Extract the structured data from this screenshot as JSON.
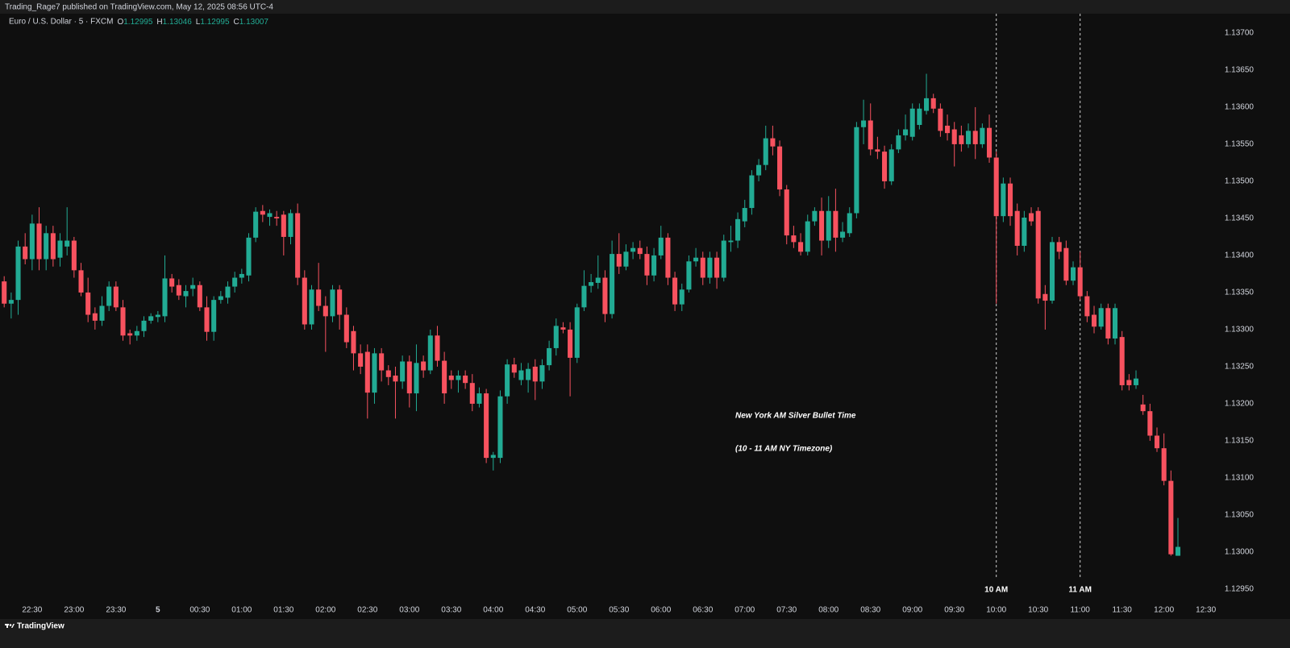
{
  "header": {
    "publisher": "Trading_Rage7 published on TradingView.com, May 12, 2025 08:56 UTC-4"
  },
  "footer": {
    "brand": "TradingView"
  },
  "chart_data": {
    "type": "candlestick",
    "symbol": "Euro / U.S. Dollar · 5 · FXCM",
    "ohlc_legend": [
      {
        "label": "O",
        "value": "1.12995"
      },
      {
        "label": "H",
        "value": "1.13046"
      },
      {
        "label": "L",
        "value": "1.12995"
      },
      {
        "label": "C",
        "value": "1.13007"
      }
    ],
    "up_color": "#22ab94",
    "down_color": "#f7525f",
    "x": [
      -110,
      -105,
      -100,
      -95,
      -90,
      -85,
      -80,
      -75,
      -70,
      -65,
      -60,
      -55,
      -50,
      -45,
      -40,
      -35,
      -30,
      -25,
      -20,
      -15,
      -10,
      -5,
      0,
      5,
      10,
      15,
      20,
      25,
      30,
      35,
      40,
      45,
      50,
      55,
      60,
      65,
      70,
      75,
      80,
      85,
      90,
      95,
      100,
      105,
      110,
      115,
      120,
      125,
      130,
      135,
      140,
      145,
      150,
      155,
      160,
      165,
      170,
      175,
      180,
      185,
      190,
      195,
      200,
      205,
      210,
      215,
      220,
      225,
      230,
      235,
      240,
      245,
      250,
      255,
      260,
      265,
      270,
      275,
      280,
      285,
      290,
      295,
      300,
      305,
      310,
      315,
      320,
      325,
      330,
      335,
      340,
      345,
      350,
      355,
      360,
      365,
      370,
      375,
      380,
      385,
      390,
      395,
      400,
      405,
      410,
      415,
      420,
      425,
      430,
      435,
      440,
      445,
      450,
      455,
      460,
      465,
      470,
      475,
      480,
      485,
      490,
      495,
      500,
      505,
      510,
      515,
      520,
      525,
      530,
      535,
      540,
      545,
      550,
      555,
      560,
      565,
      570,
      575,
      580,
      585,
      590,
      595,
      600,
      605,
      610,
      615,
      620,
      625,
      630,
      635,
      640,
      645,
      650,
      655,
      660,
      665,
      670,
      675,
      680,
      685,
      690,
      695,
      700,
      705,
      710,
      715,
      720,
      725,
      730
    ],
    "open": [
      1.13365,
      1.13335,
      1.1334,
      1.13412,
      1.13395,
      1.13443,
      1.13395,
      1.1343,
      1.13397,
      1.13412,
      1.1342,
      1.1338,
      1.1335,
      1.13322,
      1.13312,
      1.13332,
      1.13358,
      1.1333,
      1.13295,
      1.13292,
      1.13298,
      1.13312,
      1.13317,
      1.13318,
      1.13369,
      1.1336,
      1.13345,
      1.13355,
      1.1336,
      1.1333,
      1.13297,
      1.1334,
      1.13343,
      1.13358,
      1.1337,
      1.13373,
      1.13424,
      1.1346,
      1.13452,
      1.13452,
      1.13455,
      1.13425,
      1.13457,
      1.1337,
      1.13307,
      1.13354,
      1.13332,
      1.13318,
      1.13354,
      1.1332,
      1.13298,
      1.13268,
      1.1327,
      1.13215,
      1.13268,
      1.13245,
      1.13238,
      1.1323,
      1.13257,
      1.13214,
      1.13257,
      1.13245,
      1.13292,
      1.13258,
      1.13238,
      1.13232,
      1.13238,
      1.13228,
      1.132,
      1.13214,
      1.13127,
      1.13127,
      1.1321,
      1.13253,
      1.13232,
      1.13232,
      1.1325,
      1.1323,
      1.13252,
      1.13275,
      1.13303,
      1.133,
      1.13262,
      1.1333,
      1.13359,
      1.13363,
      1.1337,
      1.13321,
      1.13402,
      1.13385,
      1.13405,
      1.1341,
      1.13402,
      1.13373,
      1.134,
      1.13424,
      1.1337,
      1.13334,
      1.13354,
      1.13392,
      1.13397,
      1.1337,
      1.13397,
      1.1337,
      1.13418,
      1.1342,
      1.13446,
      1.13464,
      1.13508,
      1.13522,
      1.13558,
      1.13547,
      1.13489,
      1.13427,
      1.13418,
      1.13405,
      1.13446,
      1.1346,
      1.1342,
      1.1346,
      1.13424,
      1.1343,
      1.13457,
      1.13573,
      1.13582,
      1.13543,
      1.1354,
      1.135,
      1.13543,
      1.13562,
      1.1356,
      1.13576,
      1.13595,
      1.13612,
      1.13598,
      1.13575,
      1.1357,
      1.13562,
      1.1355,
      1.13568,
      1.1355,
      1.13572,
      1.13532,
      1.13453,
      1.13497,
      1.1346,
      1.13413,
      1.13457,
      1.1346,
      1.13348,
      1.13339,
      1.13418,
      1.1341,
      1.13366,
      1.13384,
      1.13345,
      1.1332,
      1.13304,
      1.13329,
      1.13288,
      1.1329,
      1.13232,
      1.13225,
      1.13199,
      1.1319,
      1.13157,
      1.1314,
      1.13096,
      1.12995
    ],
    "high": [
      1.13372,
      1.1335,
      1.1342,
      1.1343,
      1.13455,
      1.13465,
      1.1344,
      1.1344,
      1.1343,
      1.13465,
      1.13425,
      1.1339,
      1.1337,
      1.1333,
      1.13345,
      1.13365,
      1.13365,
      1.1334,
      1.133,
      1.13305,
      1.13318,
      1.13322,
      1.13325,
      1.134,
      1.13375,
      1.13368,
      1.1336,
      1.1337,
      1.13365,
      1.13345,
      1.13345,
      1.13352,
      1.13365,
      1.13378,
      1.13382,
      1.1343,
      1.13465,
      1.13468,
      1.13462,
      1.1346,
      1.1346,
      1.13462,
      1.1347,
      1.1338,
      1.1336,
      1.1339,
      1.13345,
      1.1336,
      1.1336,
      1.1333,
      1.13305,
      1.1328,
      1.1328,
      1.13275,
      1.13275,
      1.13252,
      1.1325,
      1.13265,
      1.13265,
      1.1328,
      1.13265,
      1.133,
      1.13305,
      1.1327,
      1.13245,
      1.13245,
      1.13245,
      1.1324,
      1.13222,
      1.1322,
      1.13135,
      1.13218,
      1.1326,
      1.13262,
      1.13255,
      1.13255,
      1.1326,
      1.1326,
      1.13285,
      1.13315,
      1.1331,
      1.1331,
      1.13335,
      1.1338,
      1.13375,
      1.134,
      1.1338,
      1.1342,
      1.1343,
      1.13415,
      1.13418,
      1.1342,
      1.13412,
      1.1341,
      1.1344,
      1.1343,
      1.13378,
      1.13362,
      1.134,
      1.1341,
      1.13405,
      1.13405,
      1.13405,
      1.13428,
      1.1344,
      1.13458,
      1.13475,
      1.13515,
      1.1353,
      1.13575,
      1.13575,
      1.13555,
      1.13495,
      1.1344,
      1.1343,
      1.13455,
      1.13465,
      1.13478,
      1.1348,
      1.1349,
      1.13445,
      1.13465,
      1.1358,
      1.1361,
      1.13605,
      1.1356,
      1.13548,
      1.1355,
      1.1357,
      1.1359,
      1.13605,
      1.13605,
      1.13645,
      1.13618,
      1.13605,
      1.1359,
      1.1358,
      1.13575,
      1.13578,
      1.136,
      1.13578,
      1.1359,
      1.1354,
      1.13505,
      1.13505,
      1.1347,
      1.1346,
      1.13465,
      1.13465,
      1.1336,
      1.13425,
      1.13425,
      1.1342,
      1.13392,
      1.13405,
      1.13352,
      1.13332,
      1.13335,
      1.13335,
      1.13335,
      1.13298,
      1.1324,
      1.13245,
      1.13212,
      1.132,
      1.13168,
      1.1316,
      1.1311,
      1.13046
    ],
    "low": [
      1.1333,
      1.13315,
      1.1332,
      1.13388,
      1.1338,
      1.1338,
      1.1338,
      1.13385,
      1.13385,
      1.134,
      1.1337,
      1.13345,
      1.1331,
      1.133,
      1.13305,
      1.13325,
      1.13325,
      1.13285,
      1.1328,
      1.13285,
      1.1329,
      1.13308,
      1.1331,
      1.1331,
      1.1335,
      1.1334,
      1.1333,
      1.13345,
      1.13325,
      1.13285,
      1.13285,
      1.13335,
      1.13335,
      1.1335,
      1.13362,
      1.13365,
      1.13418,
      1.13445,
      1.1344,
      1.1344,
      1.134,
      1.13415,
      1.1336,
      1.133,
      1.133,
      1.13325,
      1.1327,
      1.1331,
      1.133,
      1.13275,
      1.13245,
      1.1324,
      1.1318,
      1.132,
      1.1323,
      1.13225,
      1.1318,
      1.1322,
      1.13195,
      1.1319,
      1.13235,
      1.1324,
      1.1325,
      1.132,
      1.1322,
      1.13215,
      1.1322,
      1.1319,
      1.13195,
      1.1312,
      1.1311,
      1.1312,
      1.132,
      1.13235,
      1.13225,
      1.13215,
      1.13205,
      1.1322,
      1.13245,
      1.13265,
      1.13295,
      1.1321,
      1.13255,
      1.13325,
      1.1335,
      1.13355,
      1.1331,
      1.13315,
      1.13375,
      1.1338,
      1.13395,
      1.13395,
      1.1336,
      1.13365,
      1.13395,
      1.1336,
      1.13325,
      1.13325,
      1.1335,
      1.13385,
      1.1336,
      1.13362,
      1.13355,
      1.13365,
      1.13405,
      1.1341,
      1.13438,
      1.13455,
      1.135,
      1.13515,
      1.13535,
      1.1348,
      1.13415,
      1.1341,
      1.134,
      1.134,
      1.1344,
      1.134,
      1.1341,
      1.13405,
      1.13418,
      1.13425,
      1.1345,
      1.1355,
      1.13535,
      1.1353,
      1.1349,
      1.13495,
      1.13538,
      1.13555,
      1.13555,
      1.1357,
      1.1359,
      1.13592,
      1.1356,
      1.13555,
      1.1352,
      1.1354,
      1.13545,
      1.1353,
      1.13545,
      1.13525,
      1.13335,
      1.13445,
      1.1344,
      1.134,
      1.13405,
      1.1344,
      1.13335,
      1.133,
      1.13335,
      1.13395,
      1.1336,
      1.1336,
      1.1334,
      1.1331,
      1.13295,
      1.133,
      1.1328,
      1.1328,
      1.13218,
      1.13218,
      1.1322,
      1.13185,
      1.1315,
      1.13135,
      1.1309,
      1.12995,
      1.12995
    ],
    "close": [
      1.13335,
      1.1334,
      1.13412,
      1.13395,
      1.13443,
      1.13395,
      1.1343,
      1.13395,
      1.1342,
      1.1342,
      1.1338,
      1.1335,
      1.1332,
      1.13312,
      1.13332,
      1.13358,
      1.1333,
      1.13292,
      1.13292,
      1.13298,
      1.13312,
      1.13318,
      1.1332,
      1.13369,
      1.13358,
      1.13346,
      1.13352,
      1.1336,
      1.1333,
      1.13297,
      1.1334,
      1.13345,
      1.13358,
      1.1337,
      1.13375,
      1.13424,
      1.13459,
      1.13455,
      1.13457,
      1.1345,
      1.13425,
      1.13457,
      1.1337,
      1.13307,
      1.13354,
      1.13332,
      1.13318,
      1.13354,
      1.1332,
      1.13283,
      1.13268,
      1.1325,
      1.13215,
      1.13268,
      1.13245,
      1.13236,
      1.1323,
      1.13257,
      1.13214,
      1.13255,
      1.13245,
      1.13292,
      1.13258,
      1.13214,
      1.13232,
      1.13238,
      1.13228,
      1.132,
      1.13214,
      1.13127,
      1.13131,
      1.1321,
      1.13253,
      1.13242,
      1.13245,
      1.13247,
      1.1323,
      1.13252,
      1.13275,
      1.13305,
      1.133,
      1.13262,
      1.1333,
      1.13359,
      1.13364,
      1.1337,
      1.13321,
      1.13402,
      1.13385,
      1.13405,
      1.1341,
      1.13402,
      1.13373,
      1.134,
      1.13424,
      1.1337,
      1.13334,
      1.13354,
      1.13392,
      1.13397,
      1.1337,
      1.13397,
      1.1337,
      1.1342,
      1.1342,
      1.13449,
      1.13464,
      1.13508,
      1.13522,
      1.13558,
      1.13547,
      1.13489,
      1.13427,
      1.13418,
      1.13405,
      1.13446,
      1.1346,
      1.1342,
      1.1346,
      1.13424,
      1.13432,
      1.13457,
      1.13573,
      1.13582,
      1.13543,
      1.1354,
      1.135,
      1.13543,
      1.13562,
      1.1357,
      1.13598,
      1.13598,
      1.13612,
      1.13598,
      1.13568,
      1.13565,
      1.1355,
      1.1355,
      1.13568,
      1.1355,
      1.13572,
      1.13532,
      1.13453,
      1.13497,
      1.13453,
      1.13413,
      1.13451,
      1.13446,
      1.13342,
      1.13339,
      1.13418,
      1.13405,
      1.13366,
      1.13384,
      1.13345,
      1.13318,
      1.13304,
      1.13329,
      1.13288,
      1.13329,
      1.13225,
      1.13225,
      1.13234,
      1.1319,
      1.13157,
      1.1314,
      1.13096,
      1.12997,
      1.13007
    ],
    "xlim": [
      -113,
      760
    ],
    "xticks": [
      {
        "value": -90,
        "label": "22:30"
      },
      {
        "value": -60,
        "label": "23:00"
      },
      {
        "value": -30,
        "label": "23:30"
      },
      {
        "value": 0,
        "label": "5"
      },
      {
        "value": 30,
        "label": "00:30"
      },
      {
        "value": 60,
        "label": "01:00"
      },
      {
        "value": 90,
        "label": "01:30"
      },
      {
        "value": 120,
        "label": "02:00"
      },
      {
        "value": 150,
        "label": "02:30"
      },
      {
        "value": 180,
        "label": "03:00"
      },
      {
        "value": 210,
        "label": "03:30"
      },
      {
        "value": 240,
        "label": "04:00"
      },
      {
        "value": 270,
        "label": "04:30"
      },
      {
        "value": 300,
        "label": "05:00"
      },
      {
        "value": 330,
        "label": "05:30"
      },
      {
        "value": 360,
        "label": "06:00"
      },
      {
        "value": 390,
        "label": "06:30"
      },
      {
        "value": 420,
        "label": "07:00"
      },
      {
        "value": 450,
        "label": "07:30"
      },
      {
        "value": 480,
        "label": "08:00"
      },
      {
        "value": 510,
        "label": "08:30"
      },
      {
        "value": 540,
        "label": "09:00"
      },
      {
        "value": 570,
        "label": "09:30"
      },
      {
        "value": 600,
        "label": "10:00"
      },
      {
        "value": 630,
        "label": "10:30"
      },
      {
        "value": 660,
        "label": "11:00"
      },
      {
        "value": 690,
        "label": "11:30"
      },
      {
        "value": 720,
        "label": "12:00"
      },
      {
        "value": 750,
        "label": "12:30"
      }
    ],
    "ylim": [
      1.12913,
      1.13726
    ],
    "yticks": [
      {
        "value": 1.1295,
        "label": "1.12950"
      },
      {
        "value": 1.13,
        "label": "1.13000"
      },
      {
        "value": 1.1305,
        "label": "1.13050"
      },
      {
        "value": 1.131,
        "label": "1.13100"
      },
      {
        "value": 1.1315,
        "label": "1.13150"
      },
      {
        "value": 1.132,
        "label": "1.13200"
      },
      {
        "value": 1.1325,
        "label": "1.13250"
      },
      {
        "value": 1.133,
        "label": "1.13300"
      },
      {
        "value": 1.1335,
        "label": "1.13350"
      },
      {
        "value": 1.134,
        "label": "1.13400"
      },
      {
        "value": 1.1345,
        "label": "1.13450"
      },
      {
        "value": 1.135,
        "label": "1.13500"
      },
      {
        "value": 1.1355,
        "label": "1.13550"
      },
      {
        "value": 1.136,
        "label": "1.13600"
      },
      {
        "value": 1.1365,
        "label": "1.13650"
      },
      {
        "value": 1.137,
        "label": "1.13700"
      }
    ],
    "vlines": [
      {
        "x": 600,
        "label": "10 AM"
      },
      {
        "x": 660,
        "label": "11 AM"
      }
    ],
    "annotations": [
      "New York AM Silver Bullet Time",
      "(10 - 11 AM NY Timezone)"
    ]
  }
}
